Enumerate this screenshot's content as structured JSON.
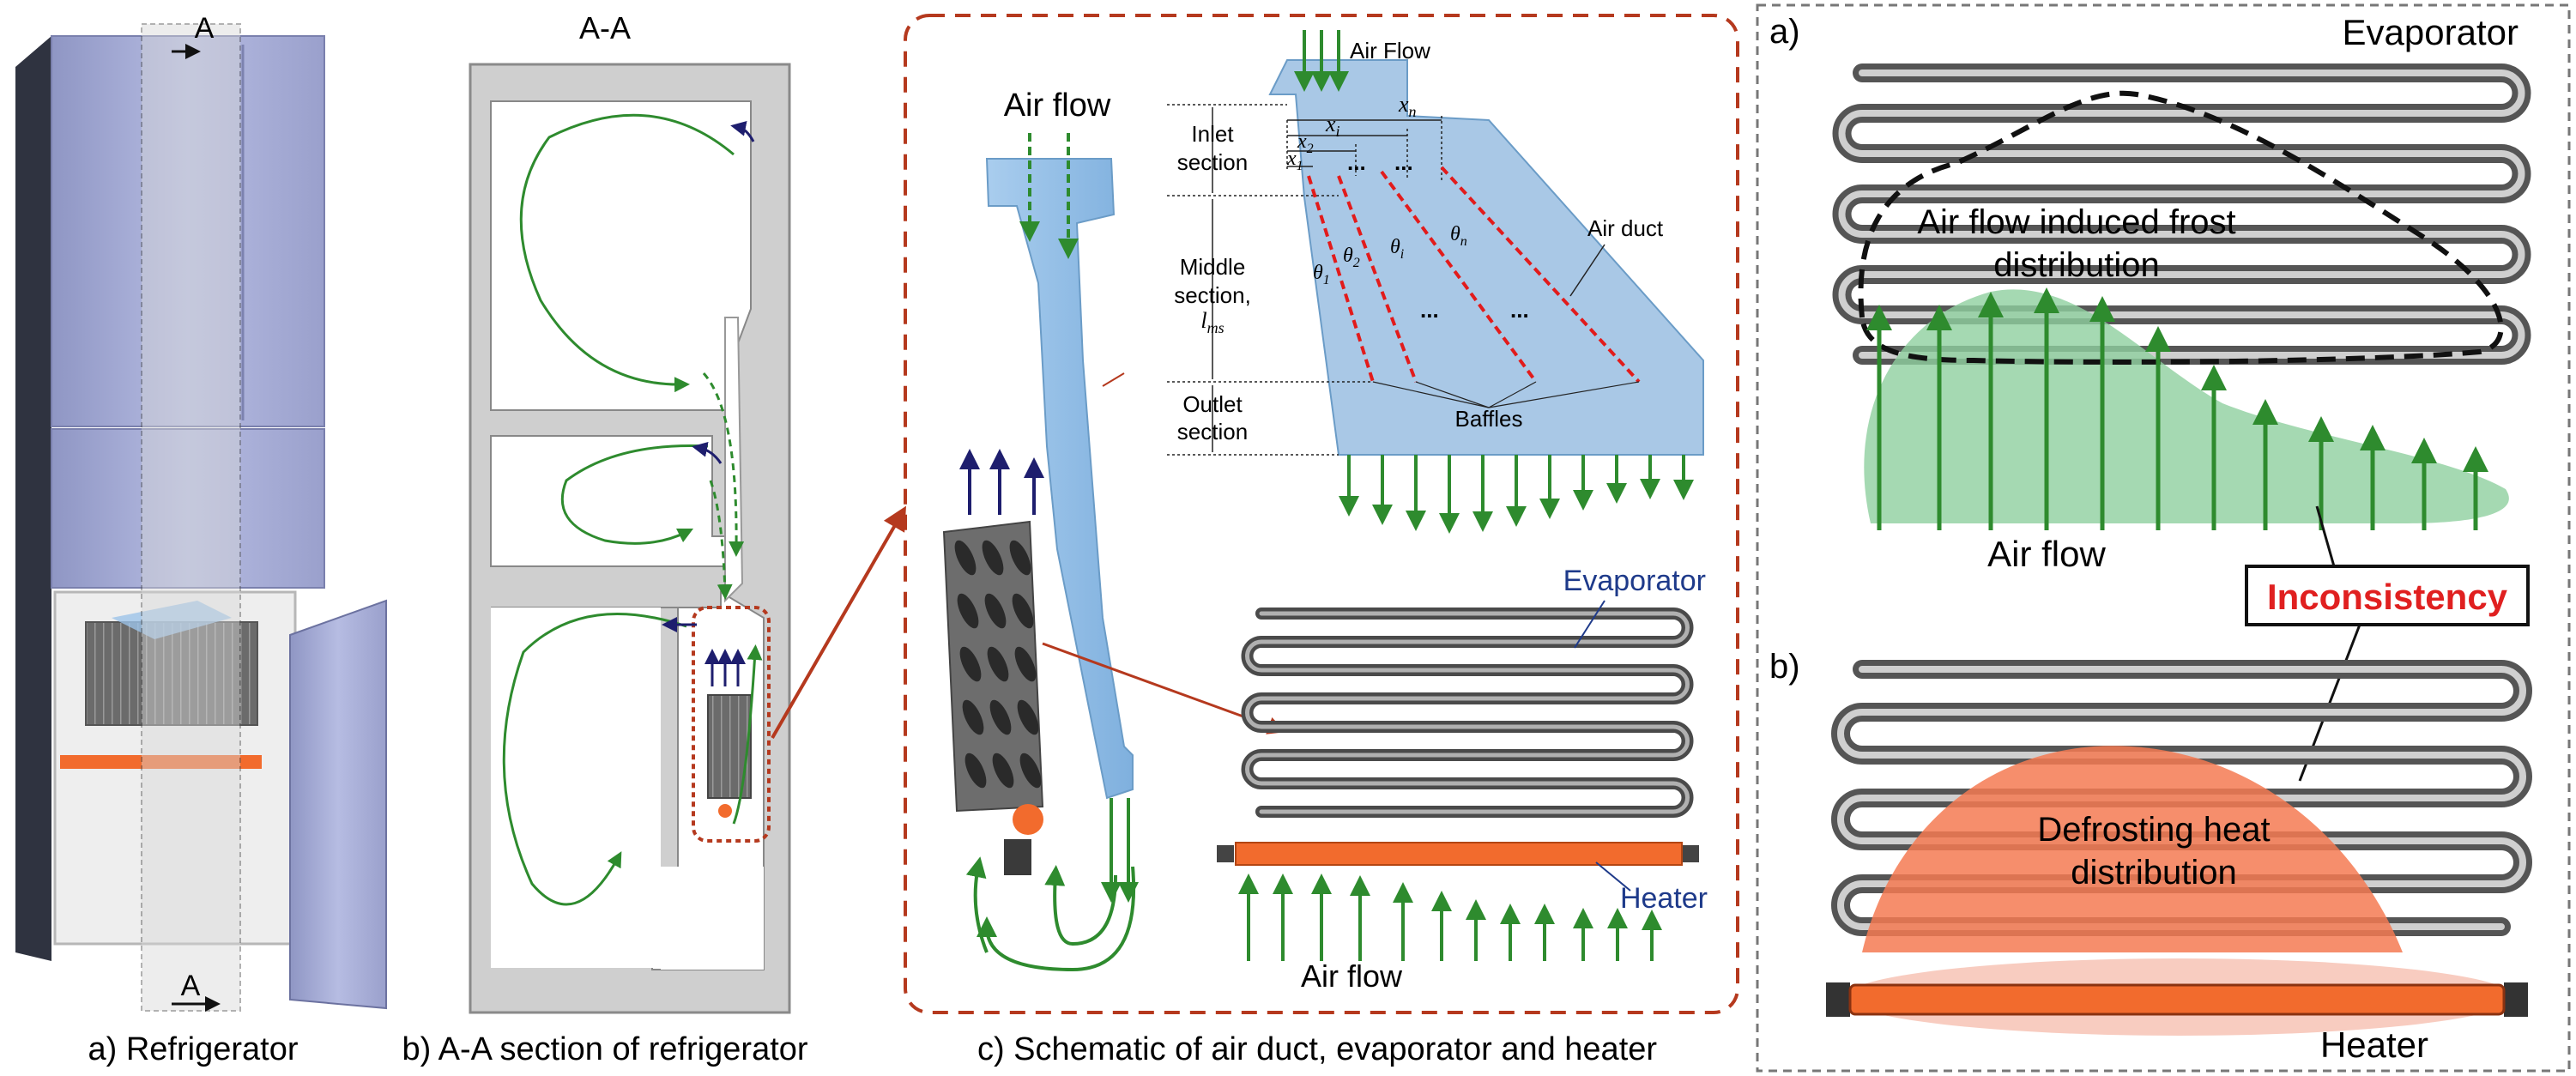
{
  "colors": {
    "air_arrow": "#2e8b2e",
    "outlet_arrow": "#1e1e6e",
    "duct_fill": "#9cc3e8",
    "heater": "#f26b2d",
    "frame_red": "#b5391e",
    "frame_gray": "#777777",
    "baffle_red": "#e21b1b",
    "inconsistency_red": "#e02020",
    "frost_fill": "#8fcf9f",
    "heat_fill": "#f47a52"
  },
  "panel_a": {
    "section_mark_top": "A",
    "section_mark_bottom": "A",
    "caption": "a) Refrigerator"
  },
  "panel_b": {
    "title": "A-A",
    "caption": "b) A-A section of refrigerator"
  },
  "panel_c": {
    "caption": "c) Schematic of air duct, evaporator and heater",
    "airflow_top": "Air flow",
    "airflow_bottom": "Air flow",
    "duct": {
      "air_flow": "Air Flow",
      "inlet_section": [
        "Inlet",
        "section"
      ],
      "middle_section": [
        "Middle",
        "section,"
      ],
      "lms": "l",
      "lms_sub": "ms",
      "outlet_section": [
        "Outlet",
        "section"
      ],
      "air_duct": "Air duct",
      "baffles": "Baffles",
      "x_labels": [
        {
          "main": "x",
          "sub": "n"
        },
        {
          "main": "x",
          "sub": "i"
        },
        {
          "main": "x",
          "sub": "2"
        },
        {
          "main": "x",
          "sub": "1"
        }
      ],
      "theta_labels": [
        {
          "main": "θ",
          "sub": "1"
        },
        {
          "main": "θ",
          "sub": "2"
        },
        {
          "main": "θ",
          "sub": "i"
        },
        {
          "main": "θ",
          "sub": "n"
        }
      ],
      "ellipsis": "..."
    },
    "evaporator": "Evaporator",
    "heater": "Heater"
  },
  "panel_d": {
    "label_a": "a)",
    "label_b": "b)",
    "evaporator": "Evaporator",
    "frost_line1": "Air flow induced frost",
    "frost_line2": "distribution",
    "air_flow": "Air flow",
    "inconsistency": "Inconsistency",
    "heat_line1": "Defrosting heat",
    "heat_line2": "distribution",
    "heater": "Heater"
  }
}
